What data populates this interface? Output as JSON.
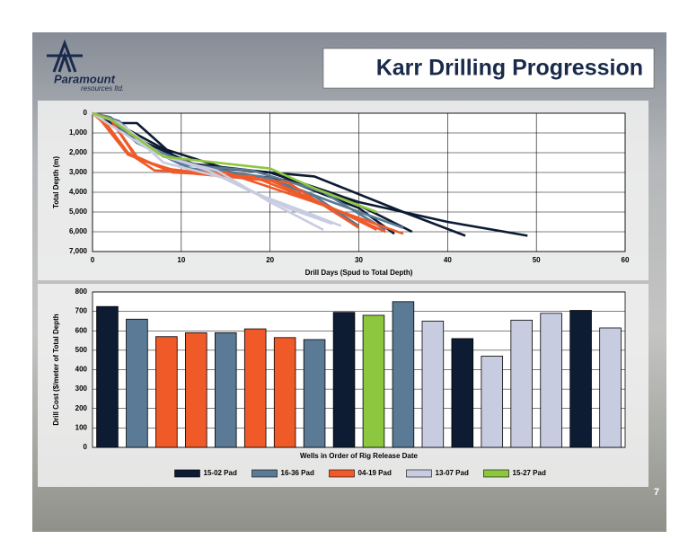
{
  "title": "Karr Drilling Progression",
  "logo": {
    "name": "Paramount",
    "subtitle": "resources ltd."
  },
  "page_number": "7",
  "chart_data": [
    {
      "type": "line",
      "xlabel": "Drill Days (Spud to Total Depth)",
      "ylabel": "Total Depth (m)",
      "xlim": [
        0,
        60
      ],
      "xticks": [
        0,
        10,
        20,
        30,
        40,
        50,
        60
      ],
      "ylim": [
        0,
        7000
      ],
      "y_reversed": true,
      "yticks": [
        0,
        {
          "value": 1000,
          "label": "1,000"
        },
        {
          "value": 2000,
          "label": "2,000"
        },
        {
          "value": 3000,
          "label": "3,000"
        },
        {
          "value": 4000,
          "label": "4,000"
        },
        {
          "value": 5000,
          "label": "5,000"
        },
        {
          "value": 6000,
          "label": "6,000"
        },
        {
          "value": 7000,
          "label": "7,000"
        }
      ],
      "grid": true,
      "series": [
        {
          "color": "#0d1b33",
          "x": [
            0,
            2,
            5,
            10,
            20,
            30,
            40,
            49
          ],
          "values": [
            0,
            500,
            500,
            2500,
            3000,
            4500,
            5500,
            6200
          ]
        },
        {
          "color": "#0d1b33",
          "x": [
            0,
            3,
            8,
            15,
            25,
            35,
            42
          ],
          "values": [
            0,
            600,
            1800,
            2800,
            3200,
            5000,
            6200
          ]
        },
        {
          "color": "#0d1b33",
          "x": [
            0,
            2,
            6,
            12,
            20,
            28,
            36
          ],
          "values": [
            0,
            300,
            1500,
            2700,
            3000,
            4200,
            6000
          ]
        },
        {
          "color": "#0d1b33",
          "x": [
            0,
            2,
            7,
            14,
            22,
            30,
            34
          ],
          "values": [
            0,
            500,
            2000,
            2900,
            3400,
            4800,
            6100
          ]
        },
        {
          "color": "#5a7a95",
          "x": [
            0,
            2,
            5,
            10,
            18,
            26,
            33
          ],
          "values": [
            0,
            300,
            1500,
            2600,
            2900,
            4000,
            5900
          ]
        },
        {
          "color": "#5a7a95",
          "x": [
            0,
            3,
            6,
            12,
            20,
            27,
            35
          ],
          "values": [
            0,
            400,
            1700,
            2700,
            3300,
            4500,
            5800
          ]
        },
        {
          "color": "#5a7a95",
          "x": [
            0,
            2,
            6,
            11,
            19,
            25,
            30
          ],
          "values": [
            0,
            200,
            1600,
            2800,
            3200,
            4200,
            5700
          ]
        },
        {
          "color": "#f05a28",
          "x": [
            0,
            1,
            4,
            7,
            15,
            25,
            35
          ],
          "values": [
            0,
            200,
            2000,
            2900,
            3000,
            4500,
            6100
          ]
        },
        {
          "color": "#f05a28",
          "x": [
            0,
            2,
            5,
            9,
            18,
            27,
            33
          ],
          "values": [
            0,
            300,
            2200,
            3000,
            3200,
            4800,
            6000
          ]
        },
        {
          "color": "#f05a28",
          "x": [
            0,
            1,
            4,
            8,
            20,
            28,
            32
          ],
          "values": [
            0,
            400,
            2100,
            2800,
            3400,
            5000,
            5900
          ]
        },
        {
          "color": "#f05a28",
          "x": [
            0,
            2,
            5,
            10,
            22,
            30
          ],
          "values": [
            0,
            300,
            2300,
            3000,
            3500,
            5800
          ]
        },
        {
          "color": "#c8cce0",
          "x": [
            0,
            3,
            8,
            14,
            20,
            26
          ],
          "values": [
            0,
            500,
            2200,
            2900,
            4500,
            5900
          ]
        },
        {
          "color": "#c8cce0",
          "x": [
            0,
            2,
            7,
            13,
            18,
            24,
            28
          ],
          "values": [
            0,
            600,
            2000,
            2900,
            4000,
            5000,
            5700
          ]
        },
        {
          "color": "#c8cce0",
          "x": [
            0,
            3,
            8,
            15,
            22,
            27
          ],
          "values": [
            0,
            500,
            2500,
            3300,
            4800,
            5600
          ]
        },
        {
          "color": "#8dc63f",
          "x": [
            0,
            2,
            8,
            20,
            25,
            32
          ],
          "values": [
            0,
            300,
            2200,
            2800,
            3800,
            5000
          ]
        }
      ]
    },
    {
      "type": "bar",
      "xlabel": "Wells in Order of Rig Release Date",
      "ylabel": "Drill Cost ($/meter of Total Depth",
      "ylim": [
        0,
        800
      ],
      "yticks": [
        0,
        100,
        200,
        300,
        400,
        500,
        600,
        700,
        800
      ],
      "grid": true,
      "categories": [
        null,
        null,
        null,
        null,
        null,
        null,
        null,
        null,
        null,
        null,
        null,
        null,
        null,
        null,
        null,
        null,
        null,
        null
      ],
      "series": [
        {
          "name": "15-02 Pad",
          "color": "#0d1b33",
          "values": [
            725,
            null,
            null,
            null,
            null,
            null,
            null,
            null,
            695,
            null,
            null,
            null,
            560,
            null,
            null,
            null,
            705,
            null
          ]
        },
        {
          "name": "16-36 Pad",
          "color": "#5a7a95",
          "values": [
            null,
            660,
            null,
            null,
            590,
            null,
            null,
            555,
            null,
            null,
            750,
            null,
            null,
            null,
            null,
            null,
            null,
            null
          ]
        },
        {
          "name": "04-19 Pad",
          "color": "#f05a28",
          "values": [
            null,
            null,
            570,
            590,
            null,
            610,
            565,
            null,
            null,
            null,
            null,
            null,
            null,
            null,
            null,
            null,
            null,
            null
          ]
        },
        {
          "name": "13-07 Pad",
          "color": "#c8cce0",
          "values": [
            null,
            null,
            null,
            null,
            null,
            null,
            null,
            null,
            null,
            null,
            null,
            650,
            null,
            470,
            655,
            690,
            null,
            615
          ]
        },
        {
          "name": "15-27 Pad",
          "color": "#8dc63f",
          "values": [
            null,
            null,
            null,
            null,
            null,
            null,
            null,
            null,
            null,
            680,
            null,
            null,
            null,
            null,
            null,
            null,
            null,
            null
          ]
        }
      ]
    }
  ]
}
